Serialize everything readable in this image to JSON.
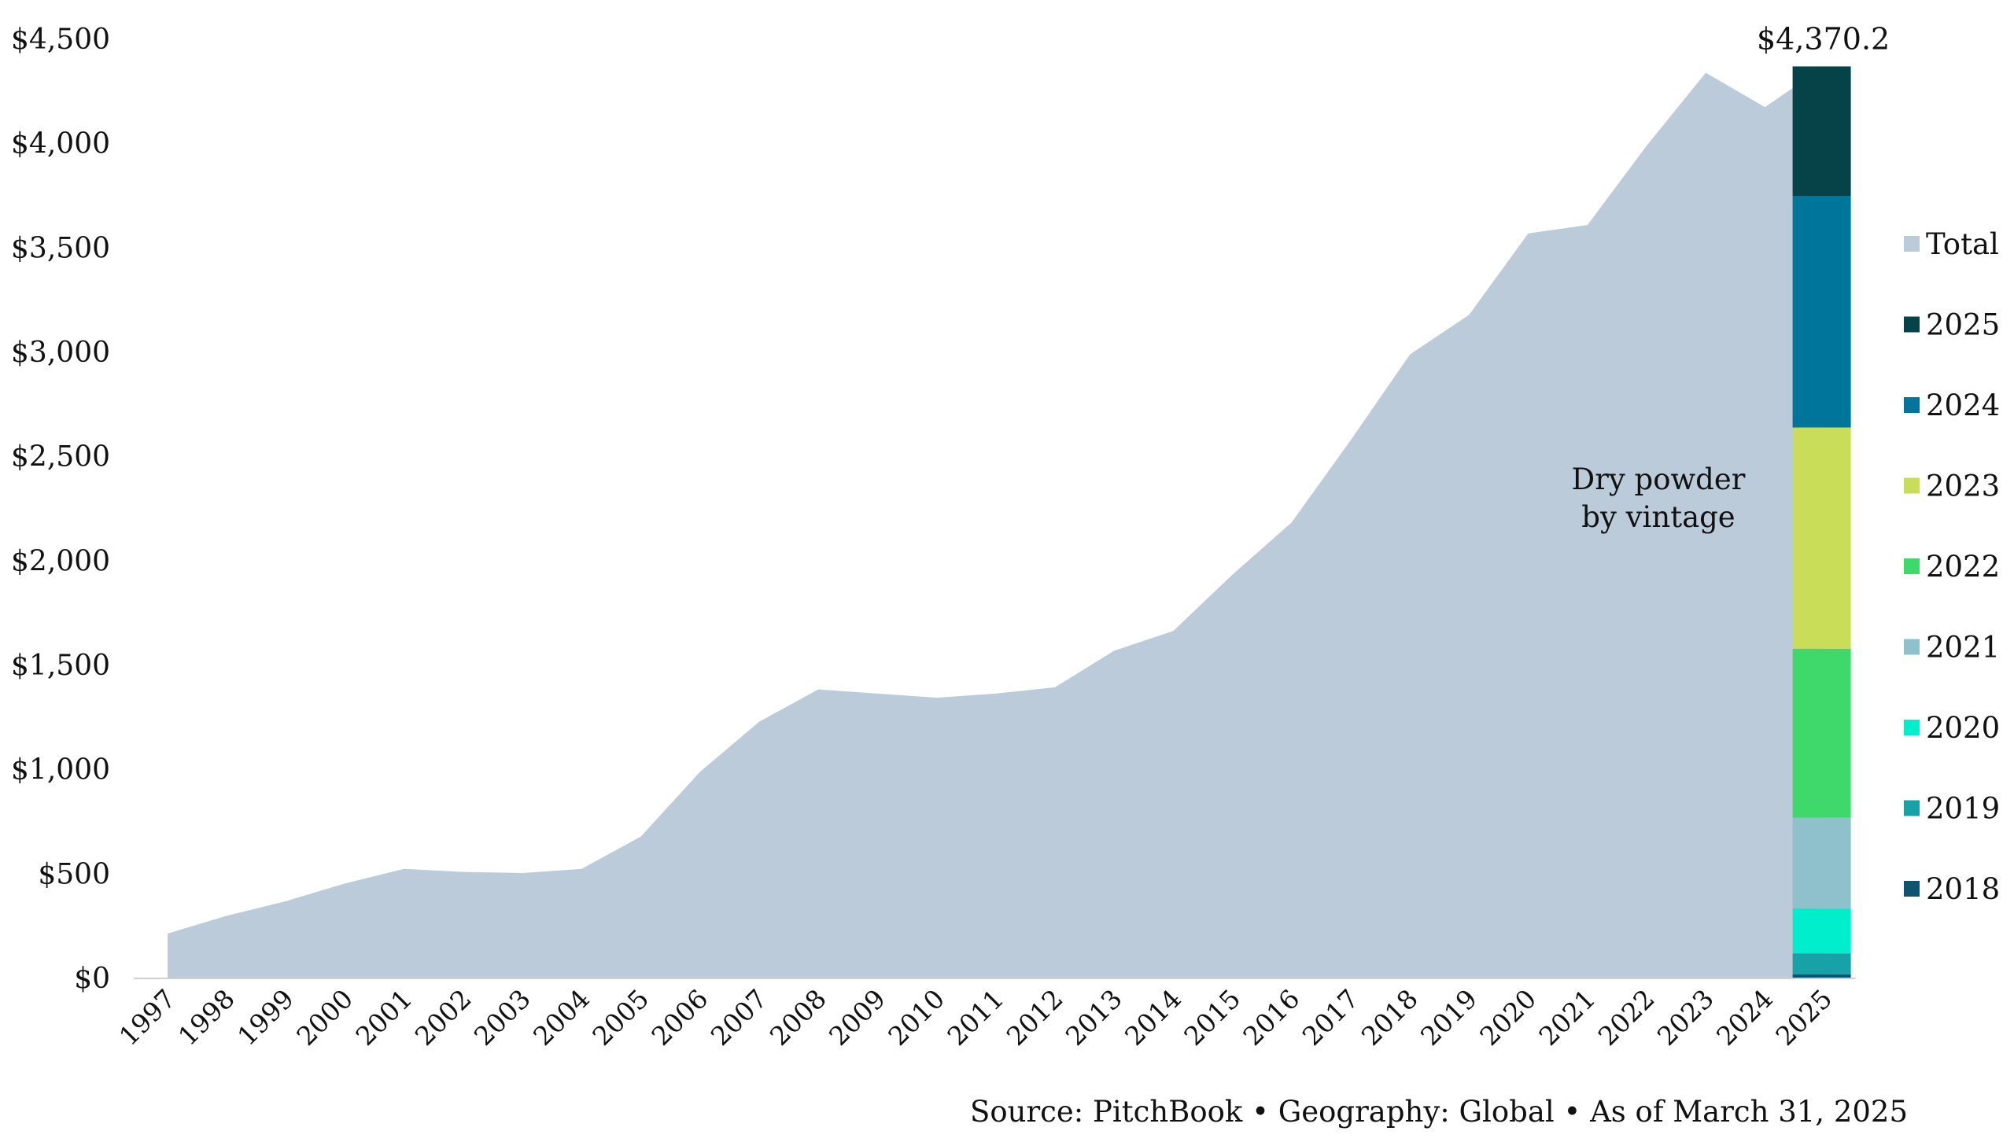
{
  "chart_data": {
    "type": "area",
    "title": "",
    "xlabel": "",
    "ylabel": "",
    "ylim": [
      0,
      4500
    ],
    "yticks": [
      0,
      500,
      1000,
      1500,
      2000,
      2500,
      3000,
      3500,
      4000,
      4500
    ],
    "ytick_labels": [
      "$0",
      "$500",
      "$1,000",
      "$1,500",
      "$2,000",
      "$2,500",
      "$3,000",
      "$3,500",
      "$4,000",
      "$4,500"
    ],
    "x": [
      "1997",
      "1998",
      "1999",
      "2000",
      "2001",
      "2002",
      "2003",
      "2004",
      "2005",
      "2006",
      "2007",
      "2008",
      "2009",
      "2010",
      "2011",
      "2012",
      "2013",
      "2014",
      "2015",
      "2016",
      "2017",
      "2018",
      "2019",
      "2020",
      "2021",
      "2022",
      "2023",
      "2024",
      "2025"
    ],
    "series": [
      {
        "name": "Total",
        "color": "#bccbda",
        "values": [
          215,
          300,
          370,
          455,
          525,
          510,
          505,
          525,
          680,
          990,
          1230,
          1385,
          1365,
          1345,
          1365,
          1395,
          1570,
          1665,
          1935,
          2185,
          2580,
          2990,
          3180,
          3570,
          3610,
          3990,
          4340,
          4175,
          4370.2
        ]
      }
    ],
    "stacked_bar": {
      "x": "2025",
      "total_label": "$4,370.2",
      "annotation_lines": [
        "Dry powder",
        "by vintage"
      ],
      "segments": [
        {
          "name": "2018",
          "value": 20,
          "color": "#0c5470"
        },
        {
          "name": "2019",
          "value": 100,
          "color": "#17a2a7"
        },
        {
          "name": "2020",
          "value": 215,
          "color": "#00eecb"
        },
        {
          "name": "2021",
          "value": 435,
          "color": "#8ec1cc"
        },
        {
          "name": "2022",
          "value": 810,
          "color": "#3fd86a"
        },
        {
          "name": "2023",
          "value": 1060,
          "color": "#cadd58"
        },
        {
          "name": "2024",
          "value": 1110,
          "color": "#00759b"
        },
        {
          "name": "2025",
          "value": 620.2,
          "color": "#064349"
        }
      ]
    },
    "legend": {
      "placement": "right",
      "items": [
        {
          "name": "Total",
          "color": "#bccbda"
        },
        {
          "name": "2025",
          "color": "#064349"
        },
        {
          "name": "2024",
          "color": "#00759b"
        },
        {
          "name": "2023",
          "color": "#cadd58"
        },
        {
          "name": "2022",
          "color": "#3fd86a"
        },
        {
          "name": "2021",
          "color": "#8ec1cc"
        },
        {
          "name": "2020",
          "color": "#00eecb"
        },
        {
          "name": "2019",
          "color": "#17a2a7"
        },
        {
          "name": "2018",
          "color": "#0c5470"
        }
      ]
    },
    "grid": false
  },
  "footer": {
    "source": "Source: PitchBook  •  Geography: Global  •  As of March 31, 2025"
  }
}
